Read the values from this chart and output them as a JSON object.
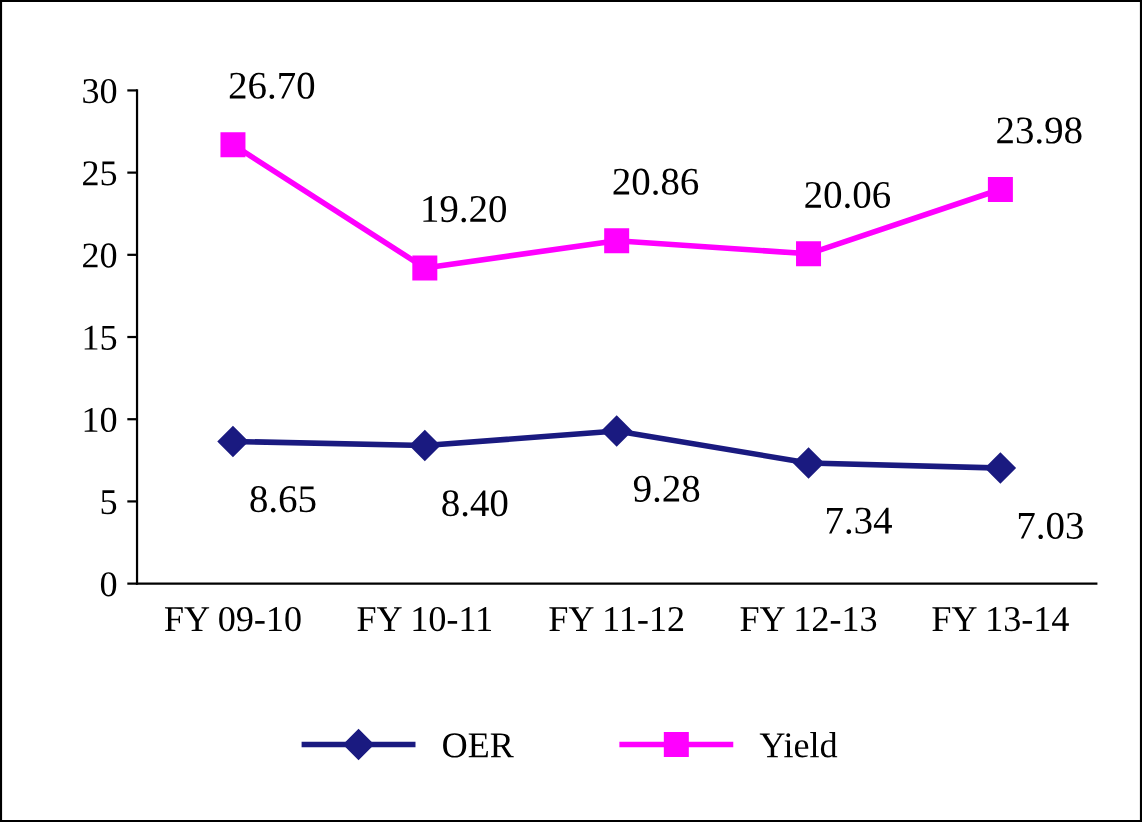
{
  "chart_data": {
    "type": "line",
    "categories": [
      "FY 09-10",
      "FY 10-11",
      "FY 11-12",
      "FY 12-13",
      "FY 13-14"
    ],
    "series": [
      {
        "name": "OER",
        "color": "#1a1a80",
        "marker": "diamond",
        "values": [
          8.65,
          8.4,
          9.28,
          7.34,
          7.03
        ],
        "value_labels": [
          "8.65",
          "8.40",
          "9.28",
          "7.34",
          "7.03"
        ]
      },
      {
        "name": "Yield",
        "color": "#ff00ff",
        "marker": "square",
        "values": [
          26.7,
          19.2,
          20.86,
          20.06,
          23.98
        ],
        "value_labels": [
          "26.70",
          "19.20",
          "20.86",
          "20.06",
          "23.98"
        ]
      }
    ],
    "ylim": [
      0,
      30
    ],
    "yticks": [
      0,
      5,
      10,
      15,
      20,
      25,
      30
    ],
    "grid": false,
    "legend": "bottom",
    "line_style": "solid"
  }
}
